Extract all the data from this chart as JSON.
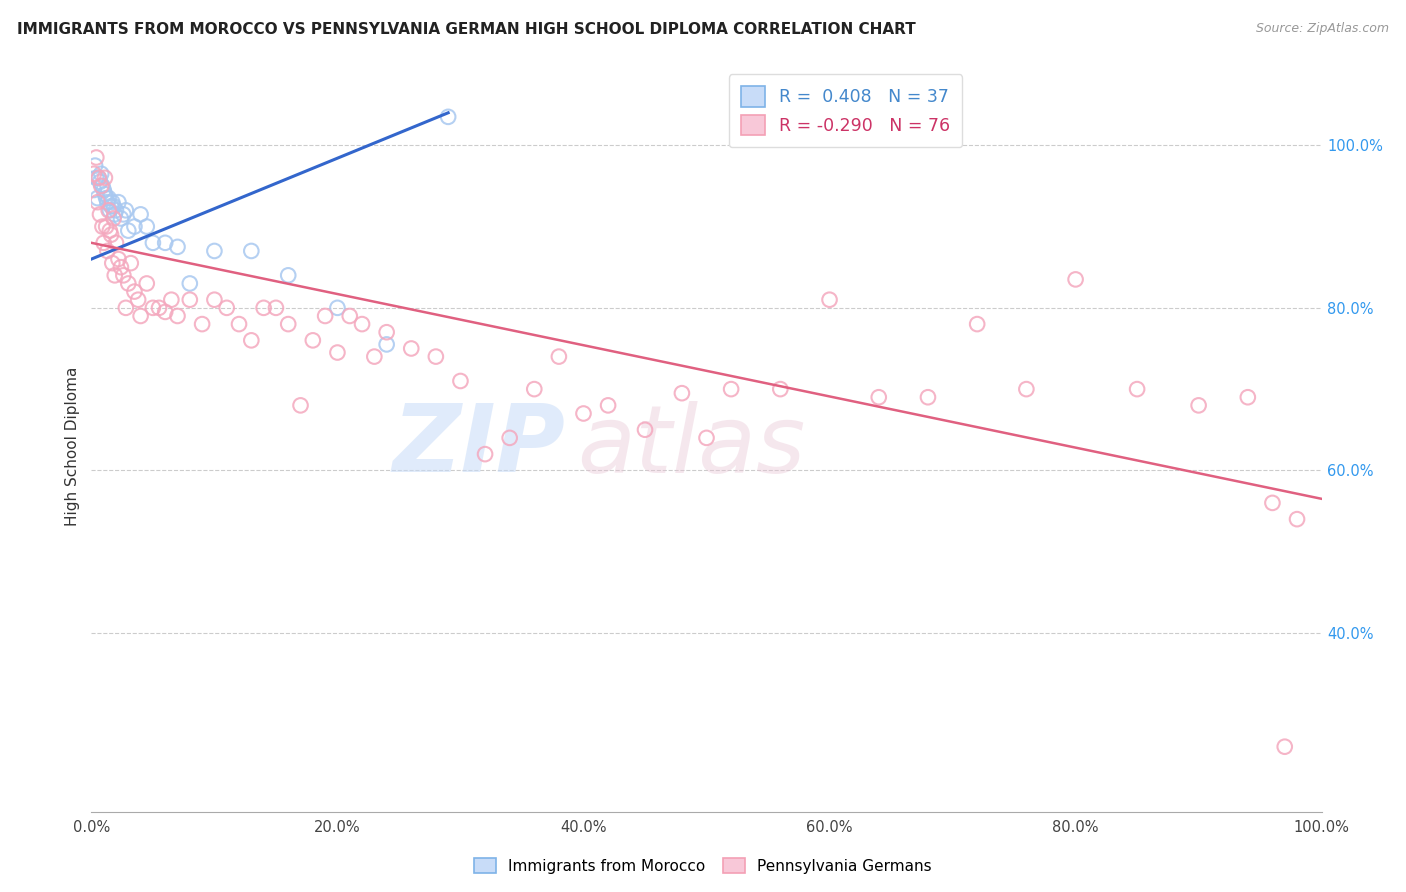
{
  "title": "IMMIGRANTS FROM MOROCCO VS PENNSYLVANIA GERMAN HIGH SCHOOL DIPLOMA CORRELATION CHART",
  "source": "Source: ZipAtlas.com",
  "ylabel": "High School Diploma",
  "blue_color": "#a8c8f0",
  "pink_color": "#f4a8be",
  "blue_line_color": "#3366cc",
  "pink_line_color": "#e06080",
  "xlim": [
    0.0,
    1.0
  ],
  "ylim": [
    0.18,
    1.08
  ],
  "xtick_vals": [
    0.0,
    0.2,
    0.4,
    0.6,
    0.8,
    1.0
  ],
  "ytick_right_vals": [
    0.4,
    0.6,
    0.8,
    1.0
  ],
  "legend_entry1": "R =  0.408   N = 37",
  "legend_entry2": "R = -0.290   N = 76",
  "legend_color1": "#4488cc",
  "legend_color2": "#cc3366",
  "blue_scatter_x": [
    0.002,
    0.003,
    0.004,
    0.005,
    0.006,
    0.007,
    0.008,
    0.009,
    0.01,
    0.011,
    0.012,
    0.013,
    0.014,
    0.015,
    0.016,
    0.017,
    0.018,
    0.019,
    0.02,
    0.022,
    0.024,
    0.026,
    0.028,
    0.03,
    0.035,
    0.04,
    0.045,
    0.05,
    0.06,
    0.07,
    0.08,
    0.1,
    0.13,
    0.16,
    0.2,
    0.24,
    0.29
  ],
  "blue_scatter_y": [
    0.945,
    0.975,
    0.96,
    0.935,
    0.96,
    0.955,
    0.965,
    0.95,
    0.945,
    0.94,
    0.935,
    0.93,
    0.935,
    0.92,
    0.925,
    0.93,
    0.925,
    0.915,
    0.92,
    0.93,
    0.91,
    0.915,
    0.92,
    0.895,
    0.9,
    0.915,
    0.9,
    0.88,
    0.88,
    0.875,
    0.83,
    0.87,
    0.87,
    0.84,
    0.8,
    0.755,
    1.035
  ],
  "pink_scatter_x": [
    0.002,
    0.004,
    0.005,
    0.006,
    0.007,
    0.008,
    0.009,
    0.01,
    0.011,
    0.012,
    0.013,
    0.014,
    0.015,
    0.016,
    0.017,
    0.018,
    0.019,
    0.02,
    0.022,
    0.024,
    0.026,
    0.028,
    0.03,
    0.032,
    0.035,
    0.038,
    0.04,
    0.045,
    0.05,
    0.055,
    0.06,
    0.065,
    0.07,
    0.08,
    0.09,
    0.1,
    0.11,
    0.12,
    0.13,
    0.14,
    0.15,
    0.16,
    0.17,
    0.18,
    0.19,
    0.2,
    0.21,
    0.22,
    0.23,
    0.24,
    0.26,
    0.28,
    0.3,
    0.32,
    0.34,
    0.36,
    0.38,
    0.4,
    0.42,
    0.45,
    0.48,
    0.5,
    0.52,
    0.56,
    0.6,
    0.64,
    0.68,
    0.72,
    0.76,
    0.8,
    0.85,
    0.9,
    0.94,
    0.96,
    0.97,
    0.98
  ],
  "pink_scatter_y": [
    0.965,
    0.985,
    0.93,
    0.96,
    0.915,
    0.95,
    0.9,
    0.88,
    0.96,
    0.9,
    0.87,
    0.92,
    0.895,
    0.89,
    0.855,
    0.91,
    0.84,
    0.88,
    0.86,
    0.85,
    0.84,
    0.8,
    0.83,
    0.855,
    0.82,
    0.81,
    0.79,
    0.83,
    0.8,
    0.8,
    0.795,
    0.81,
    0.79,
    0.81,
    0.78,
    0.81,
    0.8,
    0.78,
    0.76,
    0.8,
    0.8,
    0.78,
    0.68,
    0.76,
    0.79,
    0.745,
    0.79,
    0.78,
    0.74,
    0.77,
    0.75,
    0.74,
    0.71,
    0.62,
    0.64,
    0.7,
    0.74,
    0.67,
    0.68,
    0.65,
    0.695,
    0.64,
    0.7,
    0.7,
    0.81,
    0.69,
    0.69,
    0.78,
    0.7,
    0.835,
    0.7,
    0.68,
    0.69,
    0.56,
    0.26,
    0.54
  ],
  "blue_trendline_x": [
    0.0,
    0.29
  ],
  "blue_trendline_y": [
    0.86,
    1.04
  ],
  "pink_trendline_x": [
    0.0,
    1.0
  ],
  "pink_trendline_y": [
    0.88,
    0.565
  ]
}
